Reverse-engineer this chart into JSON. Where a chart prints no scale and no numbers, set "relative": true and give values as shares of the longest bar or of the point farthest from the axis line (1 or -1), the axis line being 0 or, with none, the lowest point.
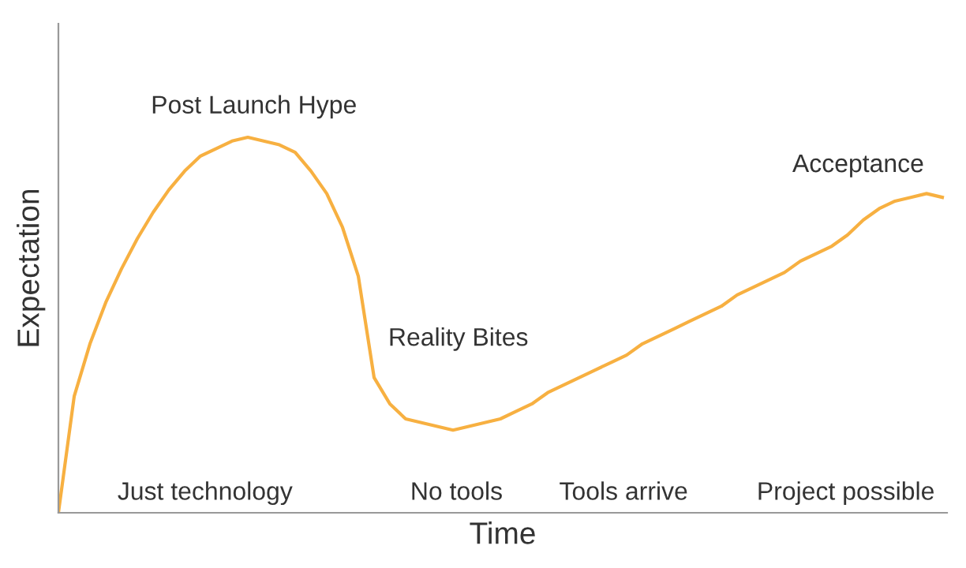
{
  "chart_data": {
    "type": "line",
    "relative": true,
    "xlabel": "Time",
    "ylabel": "Expectation",
    "color": "#f7b041",
    "marker": "none",
    "line_style": "solid",
    "legend": false,
    "tick_labels": false,
    "categories": [
      null,
      null,
      null,
      null,
      null,
      null,
      null,
      null,
      null,
      null,
      null,
      null,
      null,
      null,
      null,
      null,
      null,
      null,
      null,
      null,
      null,
      null,
      null,
      null,
      null,
      null,
      null,
      null,
      null,
      null,
      null,
      null,
      null,
      null,
      null,
      null,
      null,
      null,
      null,
      null,
      null,
      null,
      null,
      null,
      null,
      null,
      null,
      null,
      null,
      null,
      null,
      null,
      null,
      null,
      null,
      null,
      null
    ],
    "values": [
      0,
      0.31,
      0.45,
      0.56,
      0.65,
      0.73,
      0.8,
      0.86,
      0.91,
      0.95,
      0.97,
      0.99,
      1,
      0.99,
      0.98,
      0.96,
      0.91,
      0.85,
      0.76,
      0.63,
      0.36,
      0.29,
      0.25,
      0.24,
      0.23,
      0.22,
      0.23,
      0.24,
      0.25,
      0.27,
      0.29,
      0.32,
      0.34,
      0.36,
      0.38,
      0.4,
      0.42,
      0.45,
      0.47,
      0.49,
      0.51,
      0.53,
      0.55,
      0.58,
      0.6,
      0.62,
      0.64,
      0.67,
      0.69,
      0.71,
      0.74,
      0.78,
      0.81,
      0.83,
      0.84,
      0.85,
      0.84
    ],
    "annotations": [
      "Post Launch Hype",
      "Reality Bites",
      "Acceptance",
      "Just technology",
      "No tools",
      "Tools arrive",
      "Project possible"
    ]
  }
}
